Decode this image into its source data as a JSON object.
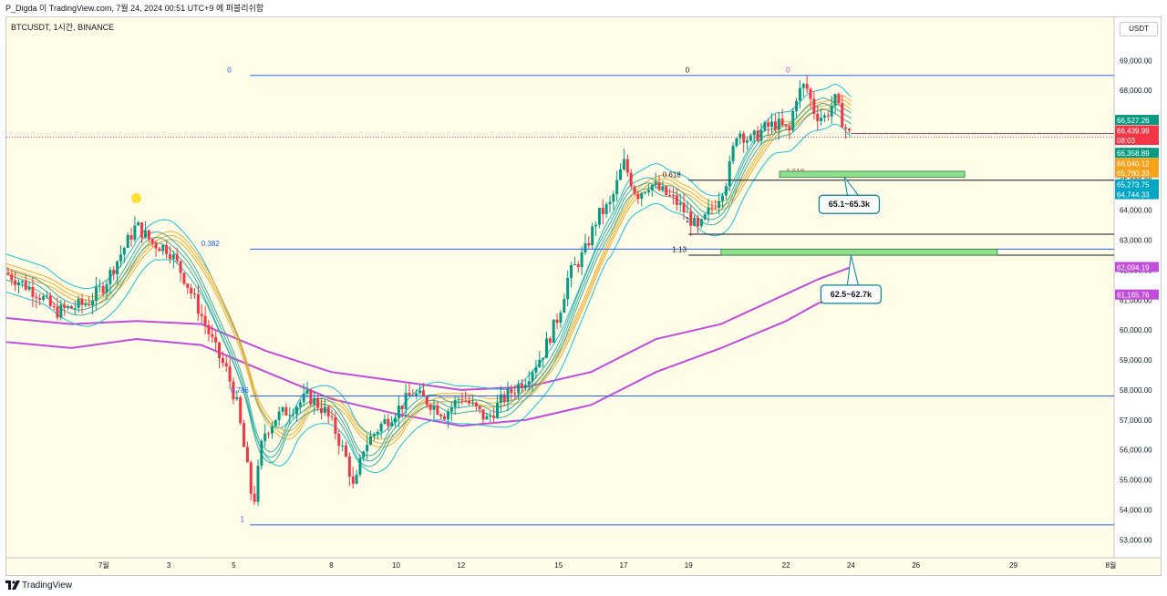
{
  "header": {
    "attribution": "P_Digda 이 TradingView.com, 7월 24, 2024 00:51 UTC+9 에 퍼블리쉬함"
  },
  "symbol_line": "BTCUSDT, 1시간, BINANCE",
  "currency": "USDT",
  "footer": {
    "brand": "TradingView"
  },
  "colors": {
    "background": "#fffce8",
    "candle_up": "#089981",
    "candle_down": "#f23645",
    "fib_line": "#2962ff",
    "band_green": "#26a69a",
    "band_orange": "#f7a21b",
    "band_teal": "#00bcd4",
    "band_purple": "#c34bdb",
    "zone_fill": "#8ee08f"
  },
  "chart_data": {
    "type": "candlestick",
    "ylim": [
      52400,
      69800
    ],
    "price_ticks": [
      "69,000.00",
      "68,000.00",
      "67,000.00",
      "66,000.00",
      "65,000.00",
      "64,000.00",
      "63,000.00",
      "62,000.00",
      "61,000.00",
      "60,000.00",
      "59,000.00",
      "58,000.00",
      "57,000.00",
      "56,000.00",
      "55,000.00",
      "54,000.00",
      "53,000.00"
    ],
    "time_ticks": [
      "7월",
      "3",
      "5",
      "8",
      "10",
      "12",
      "15",
      "17",
      "19",
      "22",
      "24",
      "26",
      "29",
      "8월"
    ],
    "time_tick_days": [
      1,
      3,
      5,
      8,
      10,
      12,
      15,
      17,
      19,
      22,
      24,
      26,
      29,
      32
    ],
    "xlim_days": [
      -2.0,
      32.1
    ],
    "last_candle_day": 24.0,
    "close_path": [
      [
        -2.0,
        61900
      ],
      [
        -1.0,
        61200
      ],
      [
        -0.5,
        60600
      ],
      [
        0.5,
        60900
      ],
      [
        1.0,
        61500
      ],
      [
        1.6,
        62700
      ],
      [
        2.0,
        63500
      ],
      [
        2.5,
        62900
      ],
      [
        3.0,
        62700
      ],
      [
        3.5,
        61700
      ],
      [
        4.0,
        60500
      ],
      [
        4.5,
        59200
      ],
      [
        4.8,
        58600
      ],
      [
        5.1,
        57500
      ],
      [
        5.4,
        55500
      ],
      [
        5.6,
        54100
      ],
      [
        5.9,
        56500
      ],
      [
        6.3,
        57100
      ],
      [
        6.8,
        57400
      ],
      [
        7.3,
        57800
      ],
      [
        7.8,
        57300
      ],
      [
        8.1,
        56700
      ],
      [
        8.5,
        55600
      ],
      [
        8.7,
        54600
      ],
      [
        9.0,
        56100
      ],
      [
        9.5,
        56800
      ],
      [
        10.0,
        57300
      ],
      [
        10.5,
        57900
      ],
      [
        11.0,
        57600
      ],
      [
        11.5,
        57200
      ],
      [
        12.0,
        57800
      ],
      [
        12.5,
        57300
      ],
      [
        12.8,
        57000
      ],
      [
        13.2,
        57600
      ],
      [
        13.6,
        58000
      ],
      [
        14.0,
        58400
      ],
      [
        14.5,
        59200
      ],
      [
        15.0,
        60500
      ],
      [
        15.3,
        61800
      ],
      [
        15.8,
        62600
      ],
      [
        16.2,
        63800
      ],
      [
        16.6,
        64200
      ],
      [
        17.0,
        65600
      ],
      [
        17.4,
        64500
      ],
      [
        17.8,
        64900
      ],
      [
        18.2,
        64600
      ],
      [
        18.6,
        64300
      ],
      [
        19.0,
        63800
      ],
      [
        19.3,
        63300
      ],
      [
        19.6,
        63900
      ],
      [
        19.9,
        64400
      ],
      [
        20.2,
        65100
      ],
      [
        20.5,
        66700
      ],
      [
        20.9,
        66300
      ],
      [
        21.3,
        66700
      ],
      [
        21.7,
        66900
      ],
      [
        22.1,
        66600
      ],
      [
        22.3,
        67800
      ],
      [
        22.6,
        68200
      ],
      [
        22.9,
        67200
      ],
      [
        23.2,
        67100
      ],
      [
        23.5,
        67700
      ],
      [
        23.8,
        66800
      ],
      [
        24.0,
        66440
      ]
    ],
    "fib_lines": [
      {
        "label": "0",
        "price": 68500,
        "x_start_day": 5.5
      },
      {
        "label": "0.382",
        "price": 62700,
        "x_start_day": 5.5
      },
      {
        "label": "0.786",
        "price": 57800,
        "x_start_day": 5.5
      },
      {
        "label": "1",
        "price": 53500,
        "x_start_day": 5.5
      }
    ],
    "fib_labels": [
      {
        "text": "0",
        "price": 68600,
        "day": 4.8,
        "color": "#2962ff"
      },
      {
        "text": "0.382",
        "price": 62800,
        "day": 4.0,
        "color": "#2962ff"
      },
      {
        "text": "0.786",
        "price": 57900,
        "day": 4.9,
        "color": "#2962ff"
      },
      {
        "text": "1",
        "price": 53600,
        "day": 5.2,
        "color": "#2962ff"
      },
      {
        "text": "0",
        "price": 68600,
        "day": 18.9,
        "color": "#131722"
      },
      {
        "text": "0.618",
        "price": 65100,
        "day": 18.2,
        "color": "#131722"
      },
      {
        "text": "1",
        "price": 63600,
        "day": 18.9,
        "color": "#131722"
      },
      {
        "text": "1.13",
        "price": 62600,
        "day": 18.5,
        "color": "#131722"
      },
      {
        "text": "0",
        "price": 68600,
        "day": 22.0,
        "color": "#c34bdb"
      },
      {
        "text": "1.618",
        "price": 65200,
        "day": 22.0,
        "color": "#f23645"
      }
    ],
    "h_lines": [
      {
        "price": 65000,
        "from_day": 19.0,
        "to_day": 32.1,
        "color": "#131722"
      },
      {
        "price": 63200,
        "from_day": 19.0,
        "to_day": 32.1,
        "color": "#131722"
      },
      {
        "price": 62500,
        "from_day": 19.0,
        "to_day": 32.1,
        "color": "#131722"
      },
      {
        "price": 66560,
        "from_day": 24.0,
        "to_day": 32.1,
        "color": "#a44b7a"
      }
    ],
    "current_price_line": 66440,
    "zones": [
      {
        "label": "65.1~65.3k",
        "low": 65100,
        "high": 65300,
        "from_day": 21.8,
        "to_day": 27.5,
        "callout_day": 24.0,
        "callout_price": 64500
      },
      {
        "label": "62.5~62.7k",
        "low": 62500,
        "high": 62700,
        "from_day": 20.0,
        "to_day": 28.5,
        "callout_day": 24.0,
        "callout_price": 61500
      }
    ],
    "purple_upper": [
      [
        -2.0,
        60400
      ],
      [
        0,
        60200
      ],
      [
        2,
        60300
      ],
      [
        4,
        60200
      ],
      [
        6,
        59300
      ],
      [
        8,
        58600
      ],
      [
        10,
        58300
      ],
      [
        12,
        58000
      ],
      [
        14,
        58100
      ],
      [
        16,
        58600
      ],
      [
        18,
        59700
      ],
      [
        20,
        60200
      ],
      [
        22,
        61200
      ],
      [
        23,
        61700
      ],
      [
        24,
        62100
      ]
    ],
    "purple_lower": [
      [
        -2.0,
        59600
      ],
      [
        0,
        59400
      ],
      [
        2,
        59700
      ],
      [
        4,
        59500
      ],
      [
        6,
        58600
      ],
      [
        8,
        57700
      ],
      [
        10,
        57200
      ],
      [
        12,
        56800
      ],
      [
        14,
        57000
      ],
      [
        16,
        57500
      ],
      [
        18,
        58600
      ],
      [
        20,
        59400
      ],
      [
        22,
        60300
      ],
      [
        23,
        60900
      ],
      [
        24,
        61100
      ]
    ],
    "price_badges": [
      {
        "text": "66,527.26",
        "price": 67000,
        "color": "#089981"
      },
      {
        "text": "66,439.99",
        "price": 66650,
        "color": "#f23645"
      },
      {
        "text": "08:03",
        "price": 66330,
        "color": "#f23645"
      },
      {
        "text": "66,358.89",
        "price": 65900,
        "color": "#089981"
      },
      {
        "text": "66,040.12",
        "price": 65560,
        "color": "#f7a21b"
      },
      {
        "text": "65,760.33",
        "price": 65240,
        "color": "#f7a21b"
      },
      {
        "text": "65,273.75",
        "price": 64850,
        "color": "#00a5c4"
      },
      {
        "text": "64,744.33",
        "price": 64520,
        "color": "#00a5c4"
      },
      {
        "text": "62,094.19",
        "price": 62090,
        "color": "#c34bdb"
      },
      {
        "text": "61,165.76",
        "price": 61170,
        "color": "#c34bdb"
      }
    ],
    "alert_dot": {
      "day": 2.0,
      "price": 64400,
      "color": "#ffe033"
    }
  }
}
